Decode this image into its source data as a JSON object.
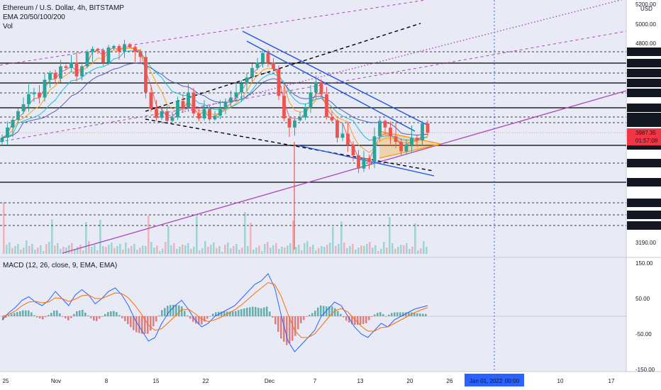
{
  "header": {
    "title": "Ethereum / U.S. Dollar, 4h, BITSTAMP",
    "ema_label": "EMA 20/50/100/200",
    "vol_label": "Vol"
  },
  "macd": {
    "label": "MACD (12, 26, close, 9, EMA, EMA)",
    "ticks": [
      "150.00",
      "50.00",
      "-50.00",
      "-150.00"
    ]
  },
  "price_axis": {
    "currency": "USD",
    "plain_ticks": [
      "5200.00",
      "5000.00",
      "4800.00",
      "3190.00"
    ],
    "level_labels": [
      "4616.35",
      "4558.76",
      "4439.24",
      "4351.71",
      "4297.26",
      "4209.63",
      "4128.68",
      "4012.06",
      "3894.56",
      "3762.32",
      "3615.09",
      "3463.82",
      "3380.66",
      "3308.73"
    ],
    "current_price": "3987.35",
    "countdown": "01:57:08"
  },
  "time_axis": {
    "labels": [
      "25",
      "Nov",
      "8",
      "15",
      "22",
      "Dec",
      "7",
      "13",
      "20",
      "26",
      "Jan 01, 2022",
      "00:00",
      "10",
      "17"
    ]
  },
  "colors": {
    "up": "#26a69a",
    "down": "#ef5350",
    "macd_line": "#2962ff",
    "signal_line": "#ff6d00",
    "channel": "#ab47bc",
    "trendline": "#1e53e5",
    "level_line": "#000000",
    "price_tag": "#f23645",
    "crosshair": "#2962ff",
    "background": "#e8eaf6"
  },
  "chart_data": {
    "type": "candlestick",
    "symbol": "ETH/USD",
    "timeframe": "4h",
    "exchange": "BITSTAMP",
    "indicators": [
      "EMA 20",
      "EMA 50",
      "EMA 100",
      "EMA 200",
      "Volume",
      "MACD (12, 26, close, 9, EMA, EMA)"
    ],
    "price_ylim": [
      3190,
      5200
    ],
    "macd_ylim": [
      -150,
      150
    ],
    "current_price": 3987.35,
    "horizontal_levels": [
      4616.35,
      4558.76,
      4439.24,
      4351.71,
      4297.26,
      4209.63,
      4128.68,
      4012.06,
      3894.56,
      3762.32,
      3615.09,
      3463.82,
      3380.66,
      3308.73
    ],
    "close_series": [
      3950,
      4000,
      4070,
      4180,
      4230,
      4290,
      4300,
      4270,
      4380,
      4440,
      4390,
      4520,
      4500,
      4560,
      4410,
      4520,
      4620,
      4680,
      4650,
      4560,
      4710,
      4740,
      4620,
      4780,
      4720,
      4620,
      4590,
      4300,
      4200,
      4110,
      4180,
      4050,
      4120,
      4250,
      4210,
      4300,
      4160,
      4100,
      4200,
      4080,
      4140,
      4200,
      4240,
      4270,
      4300,
      4350,
      4400,
      4500,
      4560,
      4610,
      4560,
      4490,
      4280,
      4100,
      4000,
      4060,
      4120,
      4210,
      4300,
      4360,
      4290,
      4130,
      4060,
      3950,
      3980,
      3900,
      3820,
      3720,
      3800,
      3770,
      3960,
      4050,
      4000,
      3960,
      3920,
      3850,
      3900,
      3950,
      3930,
      4010,
      3987.35
    ],
    "macd_series": [
      -10,
      10,
      25,
      45,
      55,
      40,
      30,
      45,
      70,
      50,
      30,
      60,
      75,
      60,
      35,
      50,
      70,
      80,
      60,
      30,
      -10,
      -40,
      -70,
      -60,
      -20,
      10,
      30,
      45,
      20,
      -10,
      -30,
      -20,
      0,
      10,
      20,
      30,
      50,
      70,
      90,
      100,
      120,
      80,
      0,
      -70,
      -100,
      -80,
      -60,
      -40,
      0,
      20,
      40,
      30,
      0,
      -30,
      -50,
      -60,
      -40,
      -20,
      -30,
      -10,
      0,
      10,
      20,
      25,
      30
    ],
    "signal_series": [
      0,
      5,
      15,
      30,
      40,
      42,
      38,
      40,
      52,
      50,
      42,
      48,
      58,
      60,
      50,
      50,
      58,
      66,
      64,
      52,
      30,
      5,
      -25,
      -40,
      -35,
      -18,
      0,
      18,
      20,
      8,
      -8,
      -15,
      -10,
      -2,
      8,
      18,
      32,
      48,
      65,
      80,
      95,
      90,
      55,
      5,
      -40,
      -60,
      -60,
      -50,
      -28,
      -5,
      15,
      22,
      12,
      -8,
      -28,
      -42,
      -42,
      -32,
      -30,
      -20,
      -10,
      0,
      10,
      18,
      24
    ]
  }
}
